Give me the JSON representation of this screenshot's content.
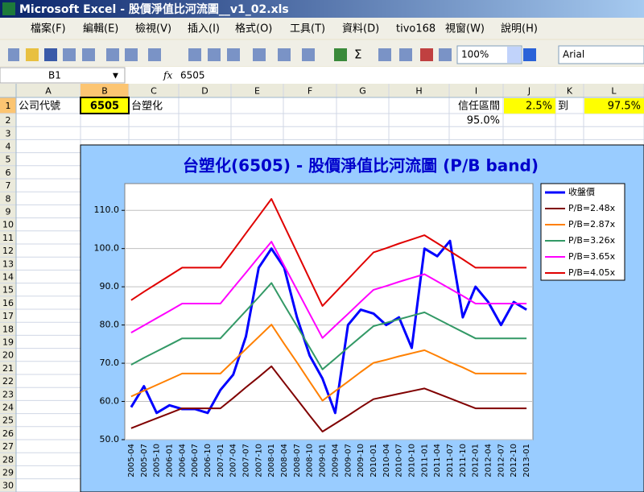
{
  "window": {
    "title": "Microsoft Excel - 股價淨值比河流圖__v1_02.xls"
  },
  "menu": [
    "檔案(F)",
    "編輯(E)",
    "檢視(V)",
    "插入(I)",
    "格式(O)",
    "工具(T)",
    "資料(D)",
    "tivo168",
    "視窗(W)",
    "說明(H)"
  ],
  "toolbar": {
    "zoom": "100%",
    "font": "Arial"
  },
  "formula_bar": {
    "name_box": "B1",
    "fx": "fx",
    "content": "6505"
  },
  "sheet": {
    "columns": [
      "A",
      "B",
      "C",
      "D",
      "E",
      "F",
      "G",
      "H",
      "I",
      "J",
      "K",
      "L"
    ],
    "rows": [
      1,
      2,
      3,
      4,
      5,
      6,
      7,
      8,
      9,
      10,
      11,
      12,
      13,
      14,
      15,
      16,
      17,
      18,
      19,
      20,
      21,
      22,
      23,
      24,
      25,
      26,
      27,
      28,
      29,
      30
    ],
    "cells": {
      "A1": "公司代號",
      "B1": "6505",
      "C1": "台塑化",
      "I1": "信任區間",
      "J1": "2.5%",
      "K1": "到",
      "L1": "97.5%",
      "I2": "95.0%"
    }
  },
  "chart_data": {
    "type": "line",
    "title": "台塑化(6505)  - 股價淨值比河流圖 (P/B band)",
    "categories": [
      "2005-04",
      "2005-07",
      "2005-10",
      "2006-01",
      "2006-04",
      "2006-07",
      "2006-10",
      "2007-01",
      "2007-04",
      "2007-07",
      "2007-10",
      "2008-01",
      "2008-04",
      "2008-07",
      "2008-10",
      "2009-01",
      "2009-04",
      "2009-07",
      "2009-10",
      "2010-01",
      "2010-04",
      "2010-07",
      "2010-10",
      "2011-01",
      "2011-04",
      "2011-07",
      "2011-10",
      "2012-01",
      "2012-04",
      "2012-07",
      "2012-10",
      "2013-01"
    ],
    "series": [
      {
        "name": "收盤價",
        "color": "#0000ff",
        "values": [
          58.5,
          64,
          57,
          59,
          58,
          58,
          57,
          63,
          67,
          77,
          95,
          100,
          95,
          82,
          72,
          66,
          57,
          80,
          84,
          83,
          80,
          82,
          74,
          100,
          98,
          102,
          82,
          90,
          86,
          80,
          86,
          84
        ]
      },
      {
        "name": "P/B=2.48x",
        "color": "#800000",
        "values": [
          53.0,
          54.3,
          55.6,
          56.9,
          58.2,
          58.2,
          58.2,
          58.2,
          60.9,
          63.7,
          66.4,
          69.2,
          64.9,
          60.6,
          56.3,
          52.1,
          54.2,
          56.3,
          58.5,
          60.6,
          61.3,
          62.0,
          62.7,
          63.4,
          62.1,
          60.8,
          59.5,
          58.2,
          58.2,
          58.2,
          58.2,
          58.2
        ]
      },
      {
        "name": "P/B=2.87x",
        "color": "#ff8000",
        "values": [
          61.3,
          62.8,
          64.3,
          65.8,
          67.3,
          67.3,
          67.3,
          67.3,
          70.5,
          73.7,
          76.9,
          80.1,
          75.1,
          70.2,
          65.2,
          60.2,
          62.7,
          65.2,
          67.7,
          70.1,
          70.9,
          71.8,
          72.6,
          73.4,
          71.9,
          70.3,
          68.9,
          67.3,
          67.3,
          67.3,
          67.3,
          67.3
        ]
      },
      {
        "name": "P/B=3.26x",
        "color": "#339966",
        "values": [
          69.6,
          71.4,
          73.1,
          74.8,
          76.5,
          76.5,
          76.5,
          76.5,
          80.1,
          83.7,
          87.3,
          91.0,
          85.3,
          79.7,
          74.1,
          68.4,
          71.2,
          74.1,
          76.9,
          79.7,
          80.6,
          81.5,
          82.4,
          83.3,
          81.6,
          79.9,
          78.2,
          76.5,
          76.5,
          76.5,
          76.5,
          76.5
        ]
      },
      {
        "name": "P/B=3.65x",
        "color": "#ff00ff",
        "values": [
          78.0,
          79.9,
          81.8,
          83.7,
          85.6,
          85.6,
          85.6,
          85.6,
          89.7,
          93.7,
          97.8,
          101.8,
          95.5,
          89.2,
          82.9,
          76.6,
          79.8,
          82.9,
          86.1,
          89.2,
          90.2,
          91.3,
          92.3,
          93.3,
          91.4,
          89.5,
          87.6,
          85.6,
          85.6,
          85.6,
          85.6,
          85.6
        ]
      },
      {
        "name": "P/B=4.05x",
        "color": "#e00000",
        "values": [
          86.5,
          88.7,
          90.8,
          92.9,
          95.0,
          95.0,
          95.0,
          95.0,
          99.5,
          104.0,
          108.5,
          113.0,
          106.0,
          99.0,
          92.0,
          85.0,
          88.5,
          92.0,
          95.5,
          99.0,
          100.1,
          101.3,
          102.4,
          103.5,
          101.4,
          99.3,
          97.2,
          95.0,
          95.0,
          95.0,
          95.0,
          95.0
        ]
      }
    ],
    "ylim": [
      50,
      117
    ],
    "yticks": [
      {
        "value": 50,
        "label": "50.0"
      },
      {
        "value": 60,
        "label": "60.0"
      },
      {
        "value": 70,
        "label": "70.0"
      },
      {
        "value": 80,
        "label": "80.0"
      },
      {
        "value": 90,
        "label": "90.0"
      },
      {
        "value": 100,
        "label": "100.0"
      },
      {
        "value": 110,
        "label": "110.0"
      }
    ],
    "grid": true,
    "legend": "right"
  }
}
